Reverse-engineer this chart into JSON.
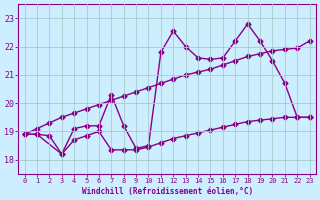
{
  "xlabel": "Windchill (Refroidissement éolien,°C)",
  "background_color": "#cceeff",
  "line_color": "#880088",
  "grid_color": "#aacccc",
  "xlim": [
    -0.5,
    23.5
  ],
  "ylim": [
    17.5,
    23.5
  ],
  "yticks": [
    18,
    19,
    20,
    21,
    22,
    23
  ],
  "xticks": [
    0,
    1,
    2,
    3,
    4,
    5,
    6,
    7,
    8,
    9,
    10,
    11,
    12,
    13,
    14,
    15,
    16,
    17,
    18,
    19,
    20,
    21,
    22,
    23
  ],
  "line_bottom_x": [
    0,
    1,
    2,
    3,
    4,
    5,
    6,
    7,
    8,
    9,
    10,
    11,
    12,
    13,
    14,
    15,
    16,
    17,
    18,
    19,
    20,
    21,
    22,
    23
  ],
  "line_bottom_y": [
    18.9,
    18.9,
    18.85,
    18.2,
    18.7,
    18.85,
    19.0,
    18.35,
    18.35,
    18.35,
    18.45,
    18.6,
    18.75,
    18.85,
    18.95,
    19.05,
    19.15,
    19.25,
    19.35,
    19.4,
    19.45,
    19.5,
    19.5,
    19.5
  ],
  "line_diag_x": [
    0,
    1,
    2,
    3,
    4,
    5,
    6,
    7,
    8,
    9,
    10,
    11,
    12,
    13,
    14,
    15,
    16,
    17,
    18,
    19,
    20,
    21,
    22,
    23
  ],
  "line_diag_y": [
    18.9,
    19.1,
    19.3,
    19.5,
    19.65,
    19.8,
    19.95,
    20.1,
    20.25,
    20.4,
    20.55,
    20.7,
    20.85,
    21.0,
    21.1,
    21.2,
    21.35,
    21.5,
    21.65,
    21.75,
    21.85,
    21.9,
    21.95,
    22.2
  ],
  "line_zigzag_x": [
    0,
    1,
    3,
    4,
    5,
    6,
    7,
    8,
    9,
    10,
    11,
    12,
    13,
    14,
    15,
    16,
    17,
    18,
    19,
    20,
    21,
    22,
    23
  ],
  "line_zigzag_y": [
    18.9,
    18.9,
    18.2,
    19.1,
    19.2,
    19.2,
    20.3,
    19.2,
    18.4,
    18.5,
    21.8,
    22.55,
    22.0,
    21.6,
    21.55,
    21.6,
    22.2,
    22.8,
    22.2,
    21.5,
    20.7,
    19.5,
    19.5
  ],
  "marker": "D",
  "markersize": 2.5,
  "linewidth": 1.0
}
